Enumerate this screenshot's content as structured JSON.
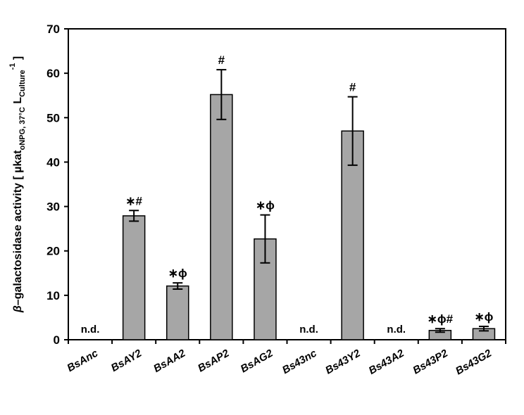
{
  "chart_data": {
    "type": "bar",
    "ylabel": {
      "prefix": "β",
      "main": "–galactosidase activity [ µkat",
      "sub": "oNPG, 37°C",
      "main2": " L",
      "sub2": "Culture",
      "sup": "-1",
      "close": " ]"
    },
    "ylim": [
      0,
      70
    ],
    "yticks": [
      0,
      10,
      20,
      30,
      40,
      50,
      60,
      70
    ],
    "grid": false,
    "categories": [
      "BsAnc",
      "BsAY2",
      "BsAA2",
      "BsAP2",
      "BsAG2",
      "Bs43nc",
      "Bs43Y2",
      "Bs43A2",
      "Bs43P2",
      "Bs43G2"
    ],
    "values": [
      null,
      27.9,
      12.1,
      55.2,
      22.7,
      null,
      47.0,
      null,
      2.1,
      2.5
    ],
    "errors": [
      null,
      1.2,
      0.7,
      5.6,
      5.4,
      null,
      7.7,
      null,
      0.4,
      0.5
    ],
    "annotations": [
      "n.d.",
      "∗#",
      "∗ϕ",
      "#",
      "∗ϕ",
      "n.d.",
      "#",
      "n.d.",
      "∗ϕ#",
      "∗ϕ"
    ],
    "bar_color": "#a6a6a6"
  }
}
